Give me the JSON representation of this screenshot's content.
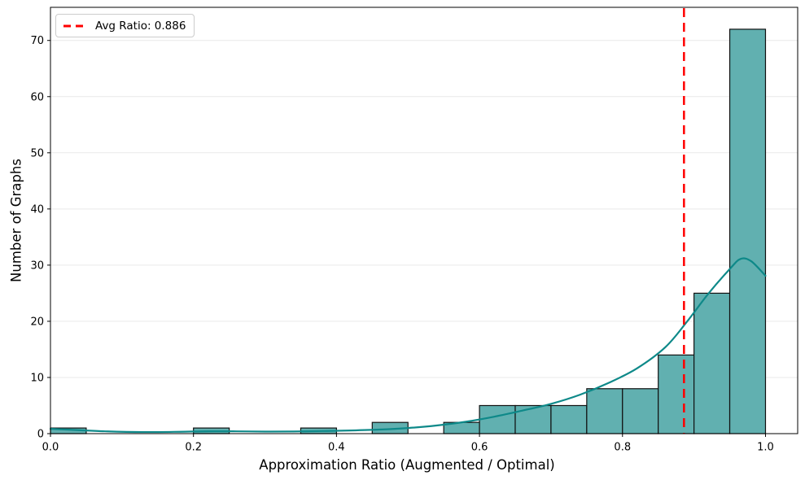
{
  "chart_data": {
    "type": "bar",
    "subtype": "histogram_with_kde",
    "title": "",
    "xlabel": "Approximation Ratio (Augmented / Optimal)",
    "ylabel": "Number of Graphs",
    "xlim": [
      0.0,
      1.045
    ],
    "ylim": [
      0,
      75.9
    ],
    "xticks": [
      0.0,
      0.2,
      0.4,
      0.6,
      0.8,
      1.0
    ],
    "xtick_labels": [
      "0.0",
      "0.2",
      "0.4",
      "0.6",
      "0.8",
      "1.0"
    ],
    "yticks": [
      0,
      10,
      20,
      30,
      40,
      50,
      60,
      70
    ],
    "ytick_labels": [
      "0",
      "10",
      "20",
      "30",
      "40",
      "50",
      "60",
      "70"
    ],
    "grid": "horizontal",
    "bin_width": 0.05,
    "bars": [
      {
        "x0": 0.0,
        "x1": 0.05,
        "count": 1
      },
      {
        "x0": 0.2,
        "x1": 0.25,
        "count": 1
      },
      {
        "x0": 0.35,
        "x1": 0.4,
        "count": 1
      },
      {
        "x0": 0.45,
        "x1": 0.5,
        "count": 2
      },
      {
        "x0": 0.55,
        "x1": 0.6,
        "count": 2
      },
      {
        "x0": 0.6,
        "x1": 0.65,
        "count": 5
      },
      {
        "x0": 0.65,
        "x1": 0.7,
        "count": 5
      },
      {
        "x0": 0.7,
        "x1": 0.75,
        "count": 5
      },
      {
        "x0": 0.75,
        "x1": 0.8,
        "count": 8
      },
      {
        "x0": 0.8,
        "x1": 0.85,
        "count": 8
      },
      {
        "x0": 0.85,
        "x1": 0.9,
        "count": 14
      },
      {
        "x0": 0.9,
        "x1": 0.95,
        "count": 25
      },
      {
        "x0": 0.95,
        "x1": 1.0,
        "count": 72
      }
    ],
    "kde_curve": [
      [
        0.0,
        0.85
      ],
      [
        0.04,
        0.62
      ],
      [
        0.08,
        0.4
      ],
      [
        0.13,
        0.28
      ],
      [
        0.18,
        0.33
      ],
      [
        0.22,
        0.42
      ],
      [
        0.26,
        0.41
      ],
      [
        0.3,
        0.36
      ],
      [
        0.34,
        0.38
      ],
      [
        0.38,
        0.46
      ],
      [
        0.42,
        0.56
      ],
      [
        0.46,
        0.72
      ],
      [
        0.5,
        1.0
      ],
      [
        0.54,
        1.45
      ],
      [
        0.58,
        2.1
      ],
      [
        0.62,
        3.0
      ],
      [
        0.66,
        4.1
      ],
      [
        0.7,
        5.3
      ],
      [
        0.74,
        6.9
      ],
      [
        0.78,
        9.0
      ],
      [
        0.82,
        11.6
      ],
      [
        0.86,
        15.4
      ],
      [
        0.89,
        19.9
      ],
      [
        0.92,
        24.9
      ],
      [
        0.95,
        29.3
      ],
      [
        0.965,
        31.1
      ],
      [
        0.98,
        30.7
      ],
      [
        1.0,
        28.1
      ]
    ],
    "avg_line": {
      "x": 0.886,
      "style": "dashed"
    },
    "legend": {
      "label": "Avg Ratio: 0.886",
      "position": "upper-left"
    },
    "colors": {
      "bar_fill": "#61b0b0",
      "bar_edge": "#111111",
      "kde_line": "#0e8989",
      "avg_line": "#ff0000",
      "grid": "#e9e9e9",
      "spine": "#000000",
      "text": "#000000",
      "background": "#ffffff"
    }
  }
}
